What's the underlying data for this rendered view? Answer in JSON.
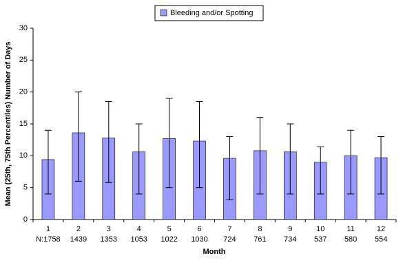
{
  "chart_data": {
    "type": "bar",
    "xlabel": "Month",
    "ylabel": "Mean (25th, 75th Percentiles) Number of Days",
    "categories": [
      "1",
      "2",
      "3",
      "4",
      "5",
      "6",
      "7",
      "8",
      "9",
      "10",
      "11",
      "12"
    ],
    "n_labels": [
      "N:1758",
      "1439",
      "1353",
      "1053",
      "1022",
      "1030",
      "724",
      "761",
      "734",
      "537",
      "580",
      "554"
    ],
    "series": [
      {
        "name": "Bleeding and/or Spotting",
        "color": "#9999ff",
        "values": [
          9.4,
          13.6,
          12.8,
          10.6,
          12.7,
          12.3,
          9.6,
          10.8,
          10.6,
          9,
          10,
          9.7
        ],
        "lower": [
          4,
          6,
          5.8,
          4,
          5,
          5,
          3.1,
          4,
          4,
          4,
          4,
          4
        ],
        "upper": [
          14,
          20,
          18.5,
          15,
          19,
          18.5,
          13,
          16,
          15,
          11.4,
          14,
          13
        ]
      }
    ],
    "ylim": [
      0,
      30
    ],
    "yticks": [
      0,
      5,
      10,
      15,
      20,
      25,
      30
    ],
    "legend": "top"
  }
}
